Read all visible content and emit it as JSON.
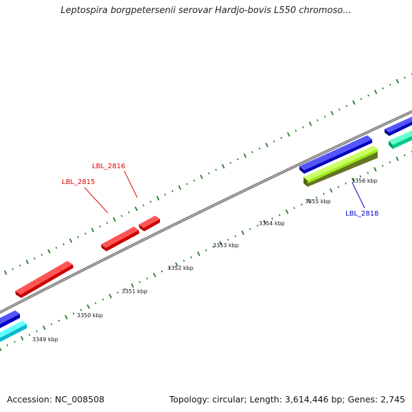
{
  "title": "Leptospira borgpetersenii serovar Hardjo-bovis L550 chromoso...",
  "footer": {
    "accession": "Accession: NC_008508",
    "stats": "Topology: circular; Length: 3,614,446 bp; Genes: 2,745"
  },
  "axis_ticks": [
    {
      "label": "3349 kbp",
      "kbp": 3349
    },
    {
      "label": "3350 kbp",
      "kbp": 3350
    },
    {
      "label": "3351 kbp",
      "kbp": 3351
    },
    {
      "label": "3352 kbp",
      "kbp": 3352
    },
    {
      "label": "3353 kbp",
      "kbp": 3353
    },
    {
      "label": "3354 kbp",
      "kbp": 3354
    },
    {
      "label": "3355 kbp",
      "kbp": 3355
    },
    {
      "label": "3356 kbp",
      "kbp": 3356
    }
  ],
  "gene_labels": [
    {
      "name": "LBL_2815",
      "color": "#dd0000"
    },
    {
      "name": "LBL_2816",
      "color": "#dd0000"
    },
    {
      "name": "LBL_2818",
      "color": "#0000cc"
    }
  ],
  "colors": {
    "backbone": "#888888",
    "forward_gene": "#ff0000",
    "reverse_gene": "#0000ee",
    "cyan_gene": "#00e5ee",
    "teal_gene": "#00ee99",
    "green_gene": "#99ee11",
    "olive_gene": "#667722",
    "tick": "#227722"
  }
}
